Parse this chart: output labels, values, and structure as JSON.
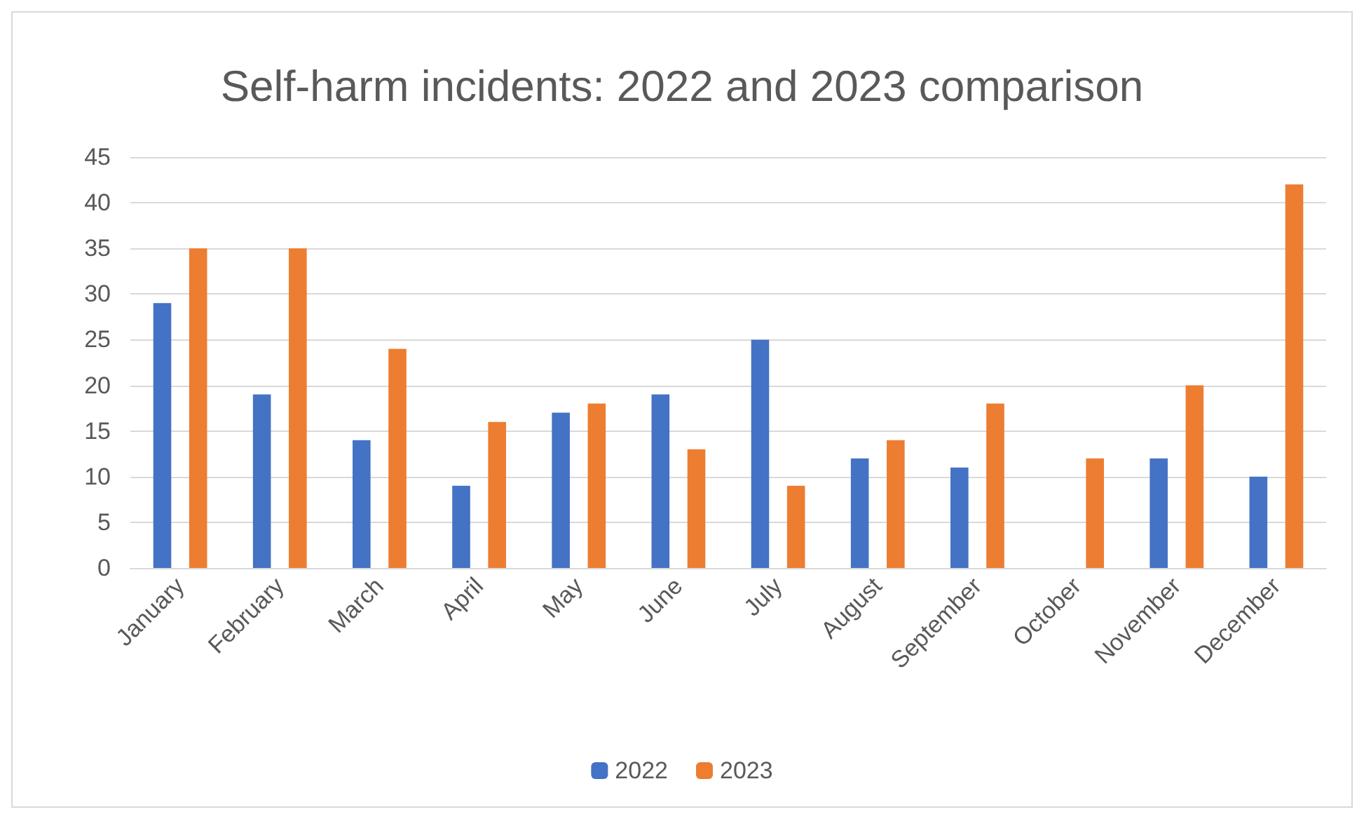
{
  "chart_data": {
    "type": "bar",
    "title": "Self-harm incidents: 2022 and 2023 comparison",
    "categories": [
      "January",
      "February",
      "March",
      "April",
      "May",
      "June",
      "July",
      "August",
      "September",
      "October",
      "November",
      "December"
    ],
    "series": [
      {
        "name": "2022",
        "color": "#4472c4",
        "values": [
          29,
          19,
          14,
          9,
          17,
          19,
          25,
          12,
          11,
          0,
          12,
          10
        ]
      },
      {
        "name": "2023",
        "color": "#ed7d31",
        "values": [
          35,
          35,
          24,
          16,
          18,
          13,
          9,
          14,
          18,
          12,
          20,
          42
        ]
      }
    ],
    "ylim": [
      0,
      45
    ],
    "yticks": [
      0,
      5,
      10,
      15,
      20,
      25,
      30,
      35,
      40,
      45
    ],
    "grid": "y",
    "legend": "bottom"
  }
}
